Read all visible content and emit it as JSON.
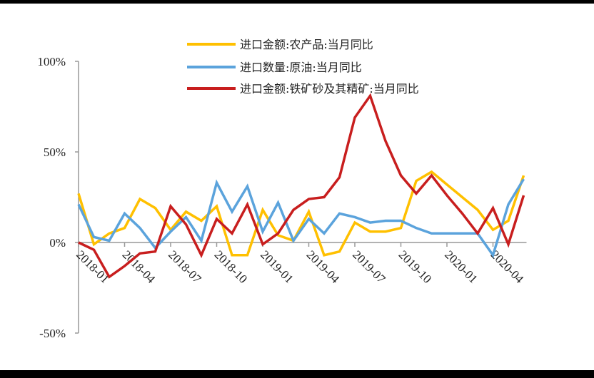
{
  "chart_data": {
    "type": "line",
    "title": "",
    "xlabel": "",
    "ylabel": "",
    "ylim": [
      -50,
      100
    ],
    "yticks": [
      "-50%",
      "0%",
      "50%",
      "100%"
    ],
    "ytick_values": [
      -50,
      0,
      50,
      100
    ],
    "xtick_labels": [
      "2018-01",
      "2018-04",
      "2018-07",
      "2018-10",
      "2019-01",
      "2019-04",
      "2019-07",
      "2019-10",
      "2020-01",
      "2020-04"
    ],
    "x": [
      "2018-01",
      "2018-02",
      "2018-03",
      "2018-04",
      "2018-05",
      "2018-06",
      "2018-07",
      "2018-08",
      "2018-09",
      "2018-10",
      "2018-11",
      "2018-12",
      "2019-01",
      "2019-02",
      "2019-03",
      "2019-04",
      "2019-05",
      "2019-06",
      "2019-07",
      "2019-08",
      "2019-09",
      "2019-10",
      "2019-11",
      "2019-12",
      "2020-01",
      "2020-02",
      "2020-03",
      "2020-04",
      "2020-05",
      "2020-06"
    ],
    "grid": false,
    "legend_position": "top",
    "series": [
      {
        "name": "进口金额:农产品:当月同比",
        "color": "#FFC000",
        "values": [
          27,
          -1,
          5,
          8,
          24,
          19,
          7,
          17,
          12,
          20,
          -7,
          -7,
          18,
          4,
          1,
          17,
          -7,
          -5,
          11,
          6,
          6,
          8,
          34,
          39,
          32,
          25,
          18,
          7,
          12,
          37
        ]
      },
      {
        "name": "进口数量:原油:当月同比",
        "color": "#5BA3DC",
        "values": [
          21,
          3,
          1,
          16,
          8,
          -3,
          6,
          14,
          1,
          33,
          17,
          31,
          6,
          22,
          1,
          13,
          5,
          16,
          14,
          11,
          12,
          12,
          8,
          5,
          5,
          5,
          5,
          -7,
          21,
          35
        ]
      },
      {
        "name": "进口金额:铁矿砂及其精矿:当月同比",
        "color": "#C81E1E",
        "values": [
          0,
          -4,
          -19,
          -13,
          -6,
          -5,
          20,
          10,
          -7,
          13,
          5,
          21,
          -1,
          5,
          18,
          24,
          25,
          36,
          69,
          81,
          56,
          37,
          27,
          37,
          26,
          16,
          5,
          19,
          -1,
          26
        ]
      }
    ]
  }
}
